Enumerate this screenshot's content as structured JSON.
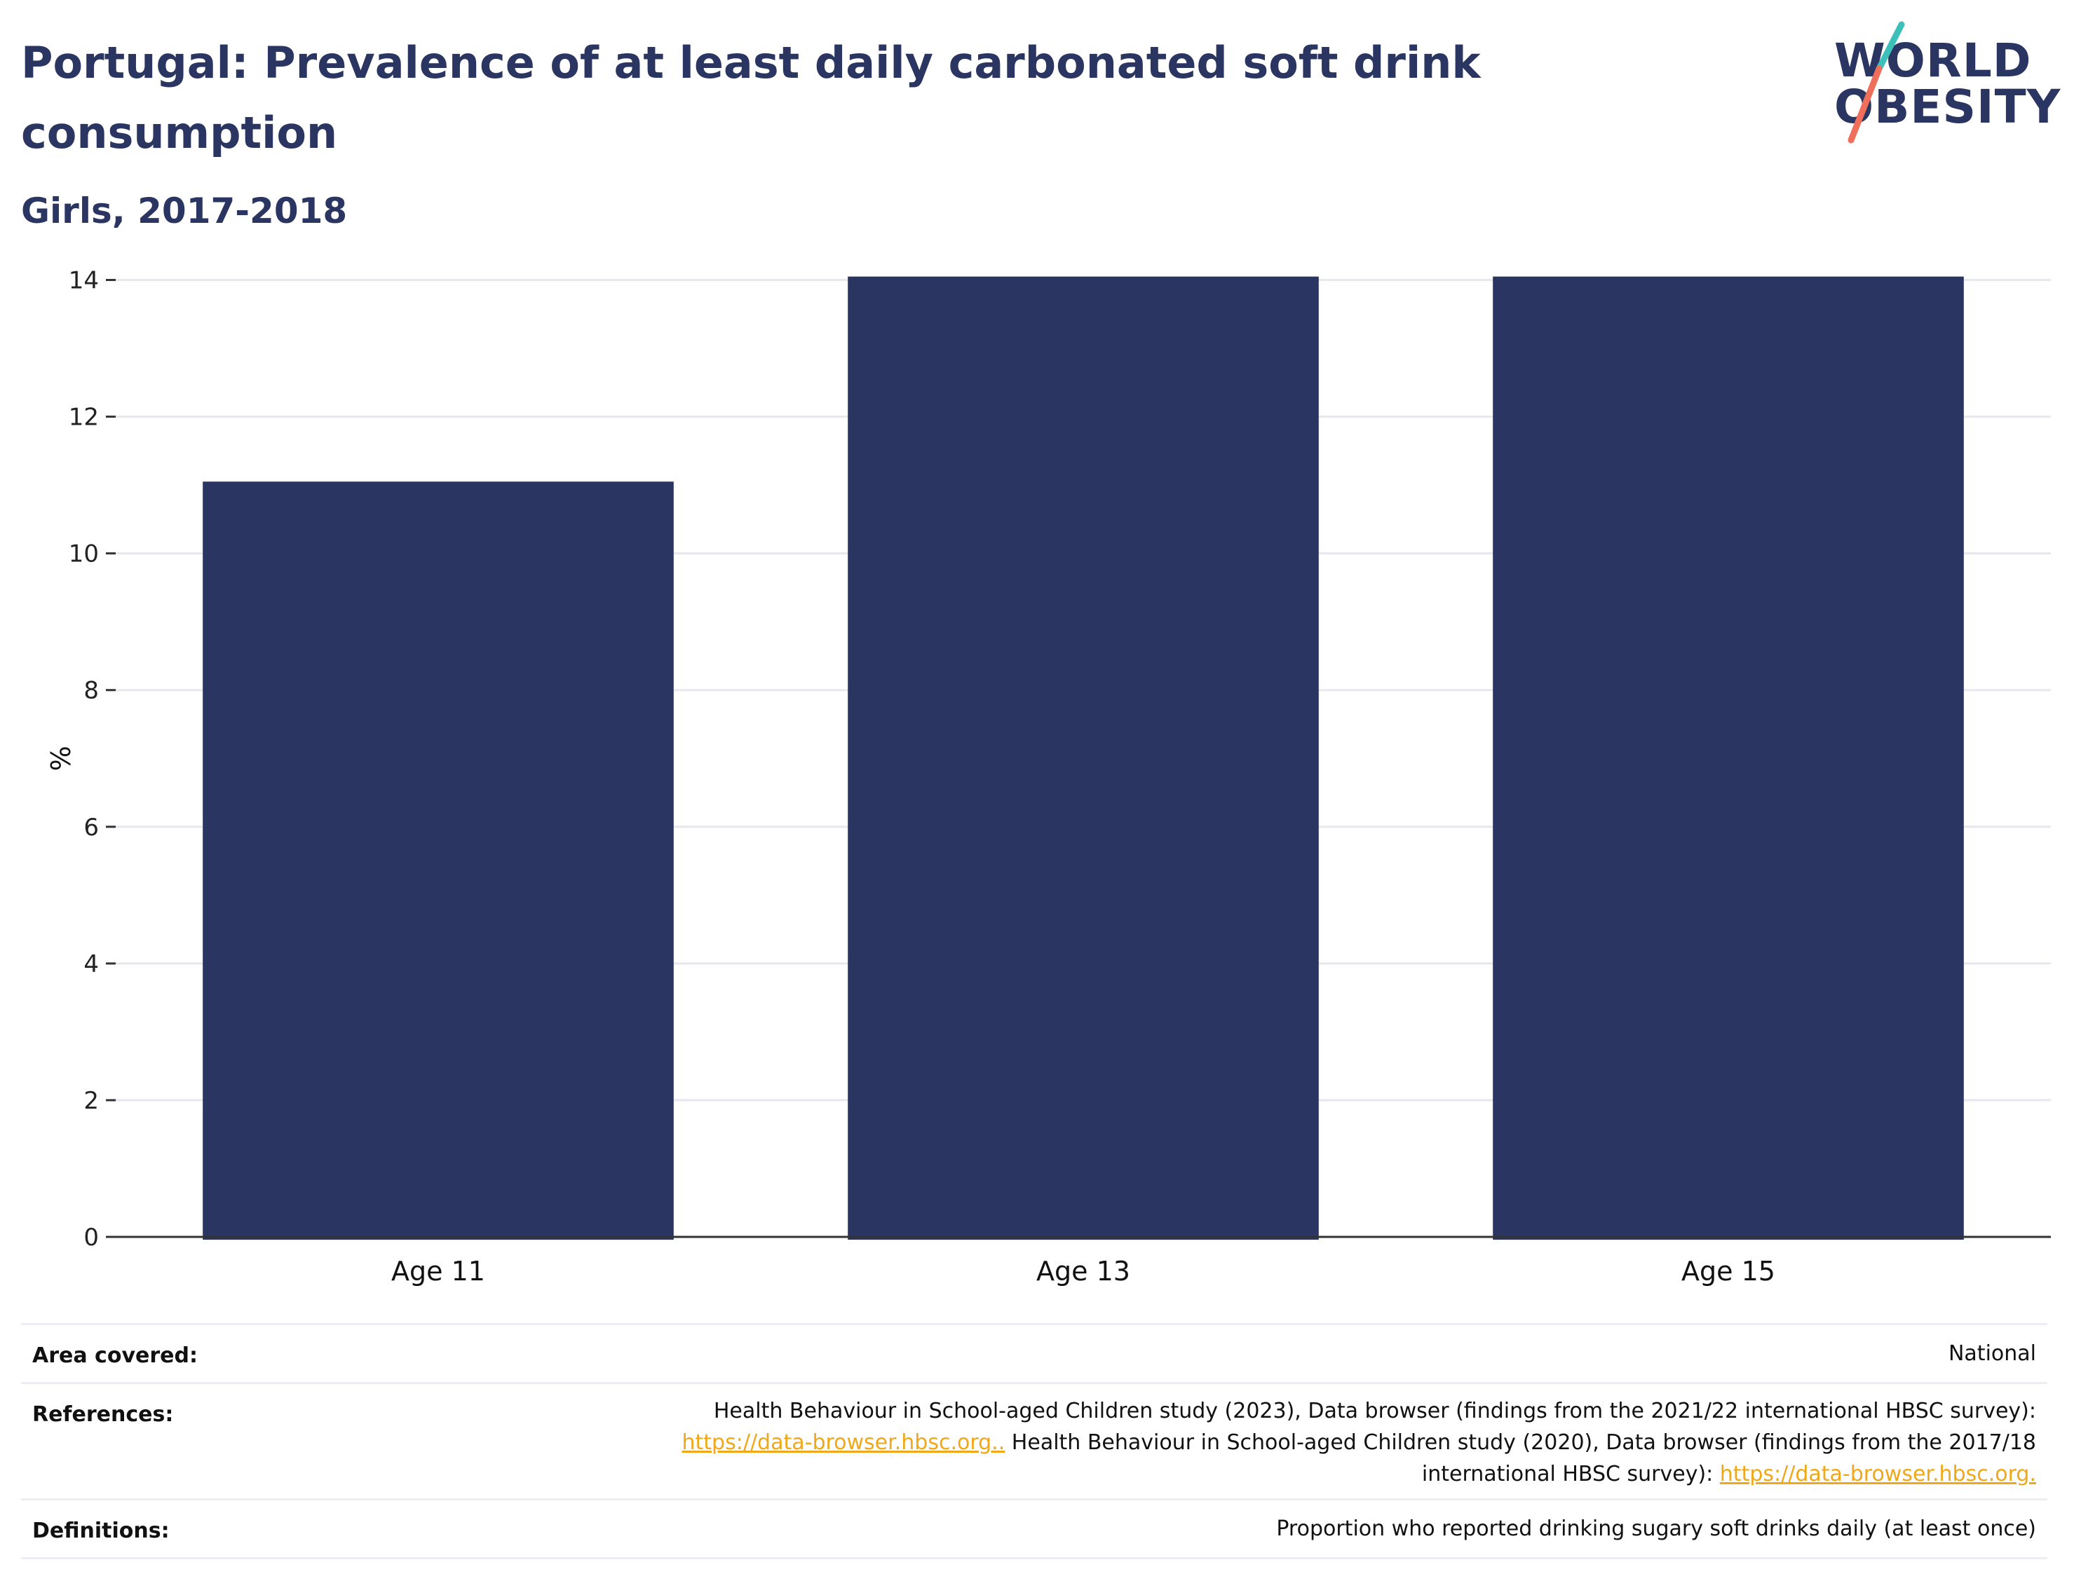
{
  "header": {
    "title": "Portugal: Prevalence of at least daily carbonated soft drink consumption",
    "subtitle": "Girls, 2017-2018"
  },
  "logo": {
    "line1": "WORLD",
    "line2": "OBESITY",
    "colors": {
      "text": "#2a3561",
      "slash_teal": "#3cc0b9",
      "slash_coral": "#ef6f5b"
    }
  },
  "chart_data": {
    "type": "bar",
    "categories": [
      "Age 11",
      "Age 13",
      "Age 15"
    ],
    "values": [
      11.05,
      14.05,
      14.05
    ],
    "ylabel": "%",
    "xlabel": "",
    "ylim": [
      0,
      14.2
    ],
    "yticks": [
      0,
      2,
      4,
      6,
      8,
      10,
      12,
      14
    ],
    "grid": true,
    "bar_color": "#2a3561"
  },
  "footer": {
    "area_label": "Area covered:",
    "area_value": "National",
    "references_label": "References:",
    "references_line1": "Health Behaviour in School-aged Children study (2023), Data browser (findings from the 2021/22 international HBSC survey):",
    "references_link1": "https://data-browser.hbsc.org..",
    "references_line2_rest": " Health Behaviour in School-aged Children study (2020), Data browser (findings from the 2017/18",
    "references_line3": "international HBSC survey): ",
    "references_link2": "https://data-browser.hbsc.org.",
    "definitions_label": "Definitions:",
    "definitions_value": "Proportion who reported drinking sugary soft drinks daily (at least once)"
  }
}
